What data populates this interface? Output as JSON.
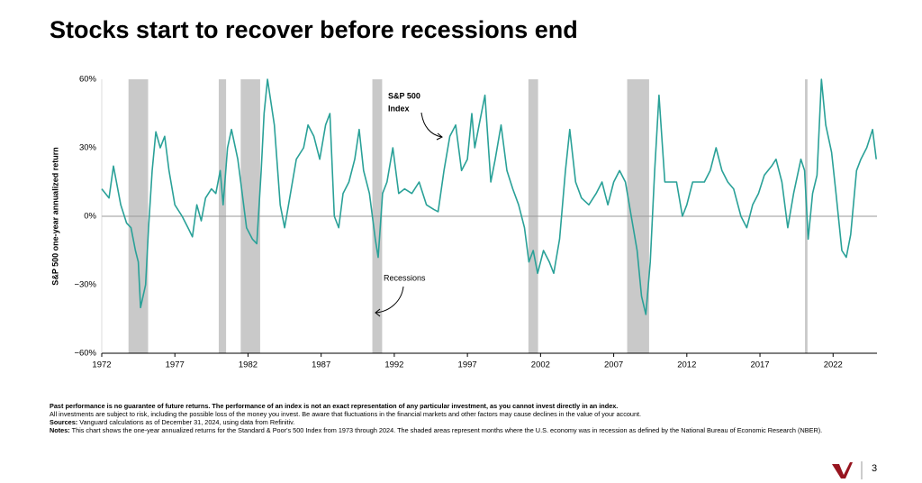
{
  "title": "Stocks start to recover before recessions end",
  "chart_data": {
    "type": "line",
    "ylabel": "S&P 500 one-year annualized return",
    "xlim": [
      1972,
      2025
    ],
    "xticks": [
      1972,
      1977,
      1982,
      1987,
      1992,
      1997,
      2002,
      2007,
      2012,
      2017,
      2022
    ],
    "ylim": [
      -60,
      60
    ],
    "yticks": [
      {
        "value": -60,
        "label": "−60%"
      },
      {
        "value": -30,
        "label": "−30%"
      },
      {
        "value": 0,
        "label": "0%"
      },
      {
        "value": 30,
        "label": "30%"
      },
      {
        "value": 60,
        "label": "60%"
      }
    ],
    "recessions": [
      [
        1973.83,
        1975.17
      ],
      [
        1980.0,
        1980.5
      ],
      [
        1981.5,
        1982.83
      ],
      [
        1990.5,
        1991.17
      ],
      [
        2001.17,
        2001.83
      ],
      [
        2007.92,
        2009.42
      ],
      [
        2020.08,
        2020.25
      ]
    ],
    "recession_color": "#c9c9c9",
    "series": [
      {
        "name": "S&P 500 Index",
        "color": "#2aa198",
        "x": [
          1972.0,
          1972.5,
          1972.8,
          1973.3,
          1973.7,
          1974.0,
          1974.3,
          1974.5,
          1974.65,
          1975.0,
          1975.2,
          1975.45,
          1975.7,
          1976.0,
          1976.3,
          1976.6,
          1977.0,
          1977.5,
          1977.9,
          1978.2,
          1978.5,
          1978.8,
          1979.1,
          1979.5,
          1979.8,
          1980.1,
          1980.3,
          1980.6,
          1980.87,
          1981.3,
          1981.6,
          1981.9,
          1982.3,
          1982.6,
          1982.9,
          1983.1,
          1983.33,
          1983.8,
          1984.2,
          1984.5,
          1984.9,
          1985.3,
          1985.8,
          1986.1,
          1986.5,
          1986.9,
          1987.3,
          1987.6,
          1987.9,
          1988.2,
          1988.5,
          1988.9,
          1989.3,
          1989.6,
          1989.9,
          1990.3,
          1990.7,
          1990.9,
          1991.2,
          1991.5,
          1991.9,
          1992.3,
          1992.7,
          1993.2,
          1993.7,
          1994.2,
          1994.7,
          1995.0,
          1995.4,
          1995.8,
          1996.2,
          1996.6,
          1997.0,
          1997.3,
          1997.5,
          1997.8,
          1998.2,
          1998.6,
          1998.9,
          1999.3,
          1999.7,
          2000.1,
          2000.5,
          2000.9,
          2001.2,
          2001.5,
          2001.8,
          2002.2,
          2002.6,
          2002.9,
          2003.3,
          2003.7,
          2004.0,
          2004.4,
          2004.8,
          2005.3,
          2005.8,
          2006.2,
          2006.6,
          2007.0,
          2007.4,
          2007.8,
          2008.2,
          2008.6,
          2008.9,
          2009.2,
          2009.5,
          2009.8,
          2010.1,
          2010.5,
          2010.9,
          2011.3,
          2011.7,
          2012.0,
          2012.4,
          2012.8,
          2013.2,
          2013.6,
          2014.0,
          2014.4,
          2014.8,
          2015.2,
          2015.7,
          2016.1,
          2016.5,
          2016.9,
          2017.3,
          2017.8,
          2018.1,
          2018.5,
          2018.9,
          2019.3,
          2019.8,
          2020.05,
          2020.3,
          2020.6,
          2020.9,
          2021.2,
          2021.5,
          2021.9,
          2022.2,
          2022.6,
          2022.9,
          2023.2,
          2023.6,
          2023.9,
          2024.3,
          2024.7,
          2024.95
        ],
        "values": [
          12,
          8,
          22,
          5,
          -3,
          -5,
          -15,
          -20,
          -40,
          -30,
          -5,
          20,
          37,
          30,
          35,
          20,
          5,
          0,
          -5,
          -9,
          5,
          -2,
          8,
          12,
          10,
          20,
          5,
          30,
          38,
          25,
          10,
          -5,
          -10,
          -12,
          20,
          45,
          60,
          40,
          5,
          -5,
          10,
          25,
          30,
          40,
          35,
          25,
          40,
          45,
          0,
          -5,
          10,
          15,
          25,
          38,
          20,
          10,
          -10,
          -18,
          10,
          15,
          30,
          10,
          12,
          10,
          15,
          5,
          3,
          2,
          20,
          35,
          40,
          20,
          25,
          45,
          30,
          40,
          53,
          15,
          25,
          40,
          20,
          12,
          5,
          -5,
          -20,
          -15,
          -25,
          -15,
          -20,
          -25,
          -10,
          20,
          38,
          15,
          8,
          5,
          10,
          15,
          5,
          15,
          20,
          15,
          0,
          -15,
          -35,
          -43,
          -20,
          20,
          53,
          15,
          15,
          15,
          0,
          5,
          15,
          15,
          15,
          20,
          30,
          20,
          15,
          12,
          0,
          -5,
          5,
          10,
          18,
          22,
          25,
          15,
          -5,
          10,
          25,
          20,
          -10,
          10,
          18,
          60,
          40,
          28,
          10,
          -15,
          -18,
          -8,
          20,
          25,
          30,
          38,
          25
        ]
      }
    ],
    "annotations": [
      {
        "text": "S&P 500"
      },
      {
        "text": "Index"
      },
      {
        "text": "Recessions"
      }
    ]
  },
  "footer": {
    "disclaimer": "Past performance is no guarantee of future returns. The performance of an index is not an exact representation of any particular investment, as you cannot invest directly in an index.",
    "risk": "All investments are subject to risk, including the possible loss of the money you invest. Be aware that fluctuations in the financial markets and other factors may cause declines in the value of your account.",
    "sources_label": "Sources:",
    "sources": "Vanguard calculations as of December 31, 2024, using data from Refinitiv.",
    "notes_label": "Notes:",
    "notes": "This chart shows the one-year annualized returns for the Standard & Poor's 500 Index from 1973 through 2024. The shaded areas represent months where the U.S. economy was in recession as defined by the National Bureau of Economic Research (NBER).",
    "page": "3"
  }
}
